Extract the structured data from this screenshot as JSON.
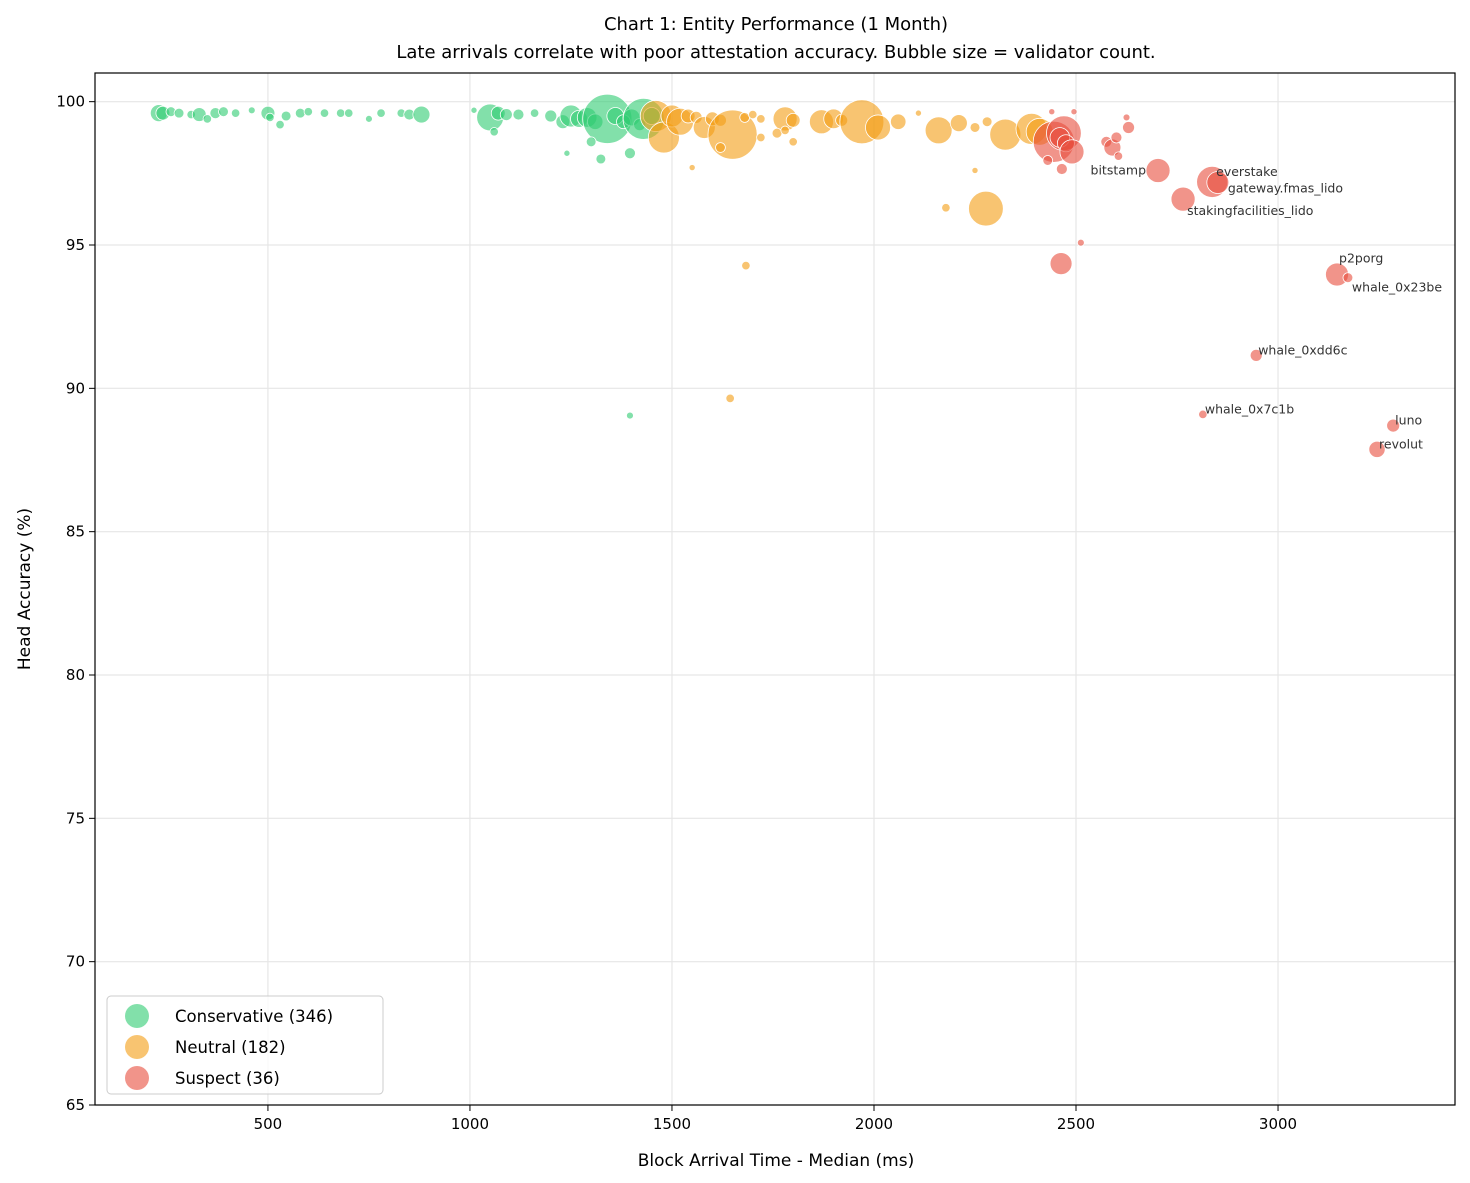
{
  "chart_data": {
    "type": "scatter",
    "title": "Chart 1: Entity Performance (1 Month)",
    "subtitle": "Late arrivals correlate with poor attestation accuracy. Bubble size = validator count.",
    "xlabel": "Block Arrival Time - Median (ms)",
    "ylabel": "Head Accuracy (%)",
    "xlim": [
      72,
      3438
    ],
    "ylim": [
      65,
      101
    ],
    "xticks": [
      500,
      1000,
      1500,
      2000,
      2500,
      3000
    ],
    "yticks": [
      65,
      70,
      75,
      80,
      85,
      90,
      95,
      100
    ],
    "grid": true,
    "legend_position": "bottom-left",
    "point_format": [
      "x_ms",
      "y_pct",
      "relative_size"
    ],
    "series": [
      {
        "name": "Conservative (346)",
        "color": "#2ecc71",
        "points": [
          [
            230,
            99.6,
            60
          ],
          [
            240,
            99.6,
            40
          ],
          [
            260,
            99.65,
            20
          ],
          [
            280,
            99.6,
            20
          ],
          [
            310,
            99.55,
            15
          ],
          [
            330,
            99.55,
            40
          ],
          [
            350,
            99.4,
            15
          ],
          [
            370,
            99.6,
            25
          ],
          [
            390,
            99.65,
            20
          ],
          [
            420,
            99.6,
            15
          ],
          [
            460,
            99.7,
            10
          ],
          [
            500,
            99.6,
            40
          ],
          [
            505,
            99.45,
            15
          ],
          [
            530,
            99.2,
            15
          ],
          [
            545,
            99.5,
            20
          ],
          [
            580,
            99.6,
            20
          ],
          [
            600,
            99.65,
            15
          ],
          [
            640,
            99.6,
            15
          ],
          [
            680,
            99.6,
            15
          ],
          [
            700,
            99.6,
            15
          ],
          [
            750,
            99.4,
            10
          ],
          [
            780,
            99.6,
            15
          ],
          [
            830,
            99.6,
            15
          ],
          [
            850,
            99.55,
            25
          ],
          [
            880,
            99.55,
            60
          ],
          [
            1010,
            99.7,
            8
          ],
          [
            1050,
            99.45,
            150
          ],
          [
            1070,
            99.6,
            40
          ],
          [
            1090,
            99.55,
            30
          ],
          [
            1120,
            99.55,
            25
          ],
          [
            1160,
            99.6,
            15
          ],
          [
            1200,
            99.5,
            30
          ],
          [
            1230,
            99.3,
            40
          ],
          [
            1250,
            99.5,
            100
          ],
          [
            1270,
            99.4,
            60
          ],
          [
            1290,
            99.45,
            80
          ],
          [
            1310,
            99.3,
            50
          ],
          [
            1340,
            99.4,
            500
          ],
          [
            1360,
            99.5,
            60
          ],
          [
            1380,
            99.3,
            40
          ],
          [
            1400,
            99.45,
            60
          ],
          [
            1420,
            99.2,
            30
          ],
          [
            1430,
            99.4,
            350
          ],
          [
            1450,
            99.5,
            60
          ],
          [
            1060,
            98.95,
            15
          ],
          [
            1240,
            98.2,
            8
          ],
          [
            1300,
            98.6,
            20
          ],
          [
            1324,
            98.0,
            20
          ],
          [
            1396,
            98.2,
            25
          ],
          [
            1396,
            89.05,
            10
          ]
        ]
      },
      {
        "name": "Neutral (182)",
        "color": "#f39c12",
        "points": [
          [
            1460,
            99.5,
            200
          ],
          [
            1480,
            98.75,
            200
          ],
          [
            1500,
            99.5,
            100
          ],
          [
            1520,
            99.3,
            150
          ],
          [
            1540,
            99.5,
            40
          ],
          [
            1560,
            99.45,
            30
          ],
          [
            1580,
            99.1,
            100
          ],
          [
            1600,
            99.4,
            40
          ],
          [
            1620,
            99.35,
            30
          ],
          [
            1650,
            98.85,
            500
          ],
          [
            1680,
            99.45,
            20
          ],
          [
            1700,
            99.55,
            15
          ],
          [
            1720,
            99.4,
            15
          ],
          [
            1780,
            99.4,
            120
          ],
          [
            1800,
            99.35,
            40
          ],
          [
            1870,
            99.3,
            120
          ],
          [
            1900,
            99.4,
            80
          ],
          [
            1920,
            99.35,
            30
          ],
          [
            1970,
            99.3,
            400
          ],
          [
            2010,
            99.1,
            130
          ],
          [
            2060,
            99.3,
            50
          ],
          [
            2110,
            99.6,
            8
          ],
          [
            2160,
            99.0,
            150
          ],
          [
            2210,
            99.25,
            60
          ],
          [
            2250,
            99.1,
            20
          ],
          [
            2280,
            99.3,
            20
          ],
          [
            2325,
            98.85,
            200
          ],
          [
            2390,
            99.05,
            200
          ],
          [
            2410,
            98.95,
            150
          ],
          [
            1620,
            98.4,
            20
          ],
          [
            1760,
            98.9,
            20
          ],
          [
            1800,
            98.6,
            15
          ],
          [
            1550,
            97.7,
            8
          ],
          [
            2250,
            97.6,
            8
          ],
          [
            2178,
            96.3,
            15
          ],
          [
            2277,
            96.27,
            250
          ],
          [
            1683,
            94.28,
            15
          ],
          [
            1644,
            89.65,
            15
          ],
          [
            1720,
            98.75,
            15
          ],
          [
            1780,
            99.0,
            15
          ]
        ]
      },
      {
        "name": "Suspect (36)",
        "color": "#e74c3c",
        "points": [
          [
            2445,
            98.6,
            350
          ],
          [
            2470,
            98.9,
            250
          ],
          [
            2460,
            98.75,
            80
          ],
          [
            2475,
            98.55,
            60
          ],
          [
            2490,
            98.25,
            120
          ],
          [
            2430,
            97.95,
            20
          ],
          [
            2465,
            97.65,
            25
          ],
          [
            2440,
            99.65,
            8
          ],
          [
            2495,
            99.65,
            8
          ],
          [
            2575,
            98.6,
            25
          ],
          [
            2590,
            98.4,
            60
          ],
          [
            2600,
            98.75,
            25
          ],
          [
            2605,
            98.1,
            15
          ],
          [
            2630,
            99.1,
            30
          ],
          [
            2625,
            99.45,
            10
          ],
          [
            2512,
            95.08,
            10
          ],
          [
            2463,
            94.35,
            100
          ],
          [
            2703,
            97.6,
            120
          ],
          [
            2837,
            97.2,
            200
          ],
          [
            2851,
            97.18,
            100
          ],
          [
            2765,
            96.6,
            120
          ],
          [
            3146,
            93.97,
            110
          ],
          [
            3173,
            93.86,
            20
          ],
          [
            2946,
            91.15,
            30
          ],
          [
            2814,
            89.09,
            15
          ],
          [
            3285,
            88.7,
            35
          ],
          [
            3245,
            87.87,
            55
          ]
        ]
      }
    ],
    "annotations": [
      {
        "text": "bitstamp",
        "x": 2703,
        "y": 97.6
      },
      {
        "text": "everstake",
        "x": 2837,
        "y": 97.2
      },
      {
        "text": "gateway.fmas_lido",
        "x": 2851,
        "y": 97.18
      },
      {
        "text": "stakingfacilities_lido",
        "x": 2765,
        "y": 96.6
      },
      {
        "text": "p2porg",
        "x": 3146,
        "y": 93.97
      },
      {
        "text": "whale_0x23be",
        "x": 3173,
        "y": 93.86
      },
      {
        "text": "whale_0xdd6c",
        "x": 2946,
        "y": 91.15
      },
      {
        "text": "whale_0x7c1b",
        "x": 2814,
        "y": 89.09
      },
      {
        "text": "luno",
        "x": 3285,
        "y": 88.7
      },
      {
        "text": "revolut",
        "x": 3245,
        "y": 87.87
      }
    ]
  }
}
